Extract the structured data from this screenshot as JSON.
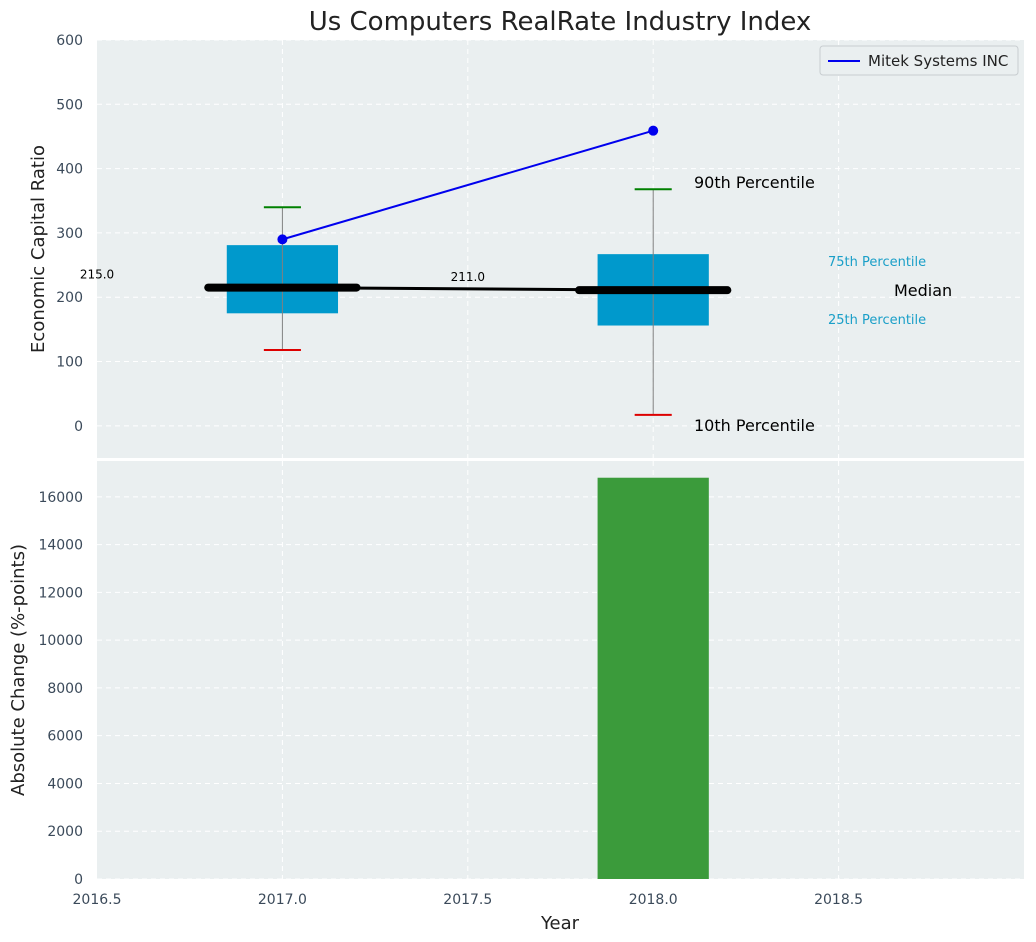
{
  "chart_data": [
    {
      "type": "box",
      "title": "Us Computers RealRate Industry Index",
      "ylabel": "Economic Capital Ratio",
      "xlim": [
        2016.5,
        2019.0
      ],
      "ylim": [
        -50,
        600
      ],
      "yticks": [
        0,
        100,
        200,
        300,
        400,
        500,
        600
      ],
      "grid": true,
      "boxes": [
        {
          "x": 2017.0,
          "p10": 118,
          "p25": 175,
          "median": 215,
          "p75": 281,
          "p90": 340,
          "median_label": "215.0"
        },
        {
          "x": 2018.0,
          "p10": 17,
          "p25": 156,
          "median": 211,
          "p75": 267,
          "p90": 368,
          "median_label": "211.0"
        }
      ],
      "median_line": {
        "x": [
          2017.0,
          2018.0
        ],
        "y": [
          215,
          211
        ]
      },
      "series": [
        {
          "name": "Mitek Systems INC",
          "x": [
            2017.0,
            2018.0
          ],
          "y": [
            290,
            459
          ],
          "color": "#0000ee"
        }
      ],
      "legend": {
        "placement": "top-right"
      },
      "annotations": {
        "p90": "90th Percentile",
        "p75": "75th Percentile",
        "median": "Median",
        "p25": "25th Percentile",
        "p10": "10th Percentile"
      },
      "colors": {
        "box": "#0099cc",
        "whisker_top": "#008000",
        "whisker_bottom": "#dd0000",
        "median": "#000000",
        "background": "#eaeff0"
      }
    },
    {
      "type": "bar",
      "xlabel": "Year",
      "ylabel": "Absolute Change (%-points)",
      "xlim": [
        2016.5,
        2019.0
      ],
      "xticks": [
        2016.5,
        2017.0,
        2017.5,
        2018.0,
        2018.5
      ],
      "xtick_labels": [
        "2016.5",
        "2017.0",
        "2017.5",
        "2018.0",
        "2018.5"
      ],
      "ylim": [
        0,
        17500
      ],
      "yticks": [
        0,
        2000,
        4000,
        6000,
        8000,
        10000,
        12000,
        14000,
        16000
      ],
      "grid": true,
      "bars": [
        {
          "x": 2018.0,
          "value": 16800,
          "color": "#3b9b3b"
        }
      ]
    }
  ]
}
